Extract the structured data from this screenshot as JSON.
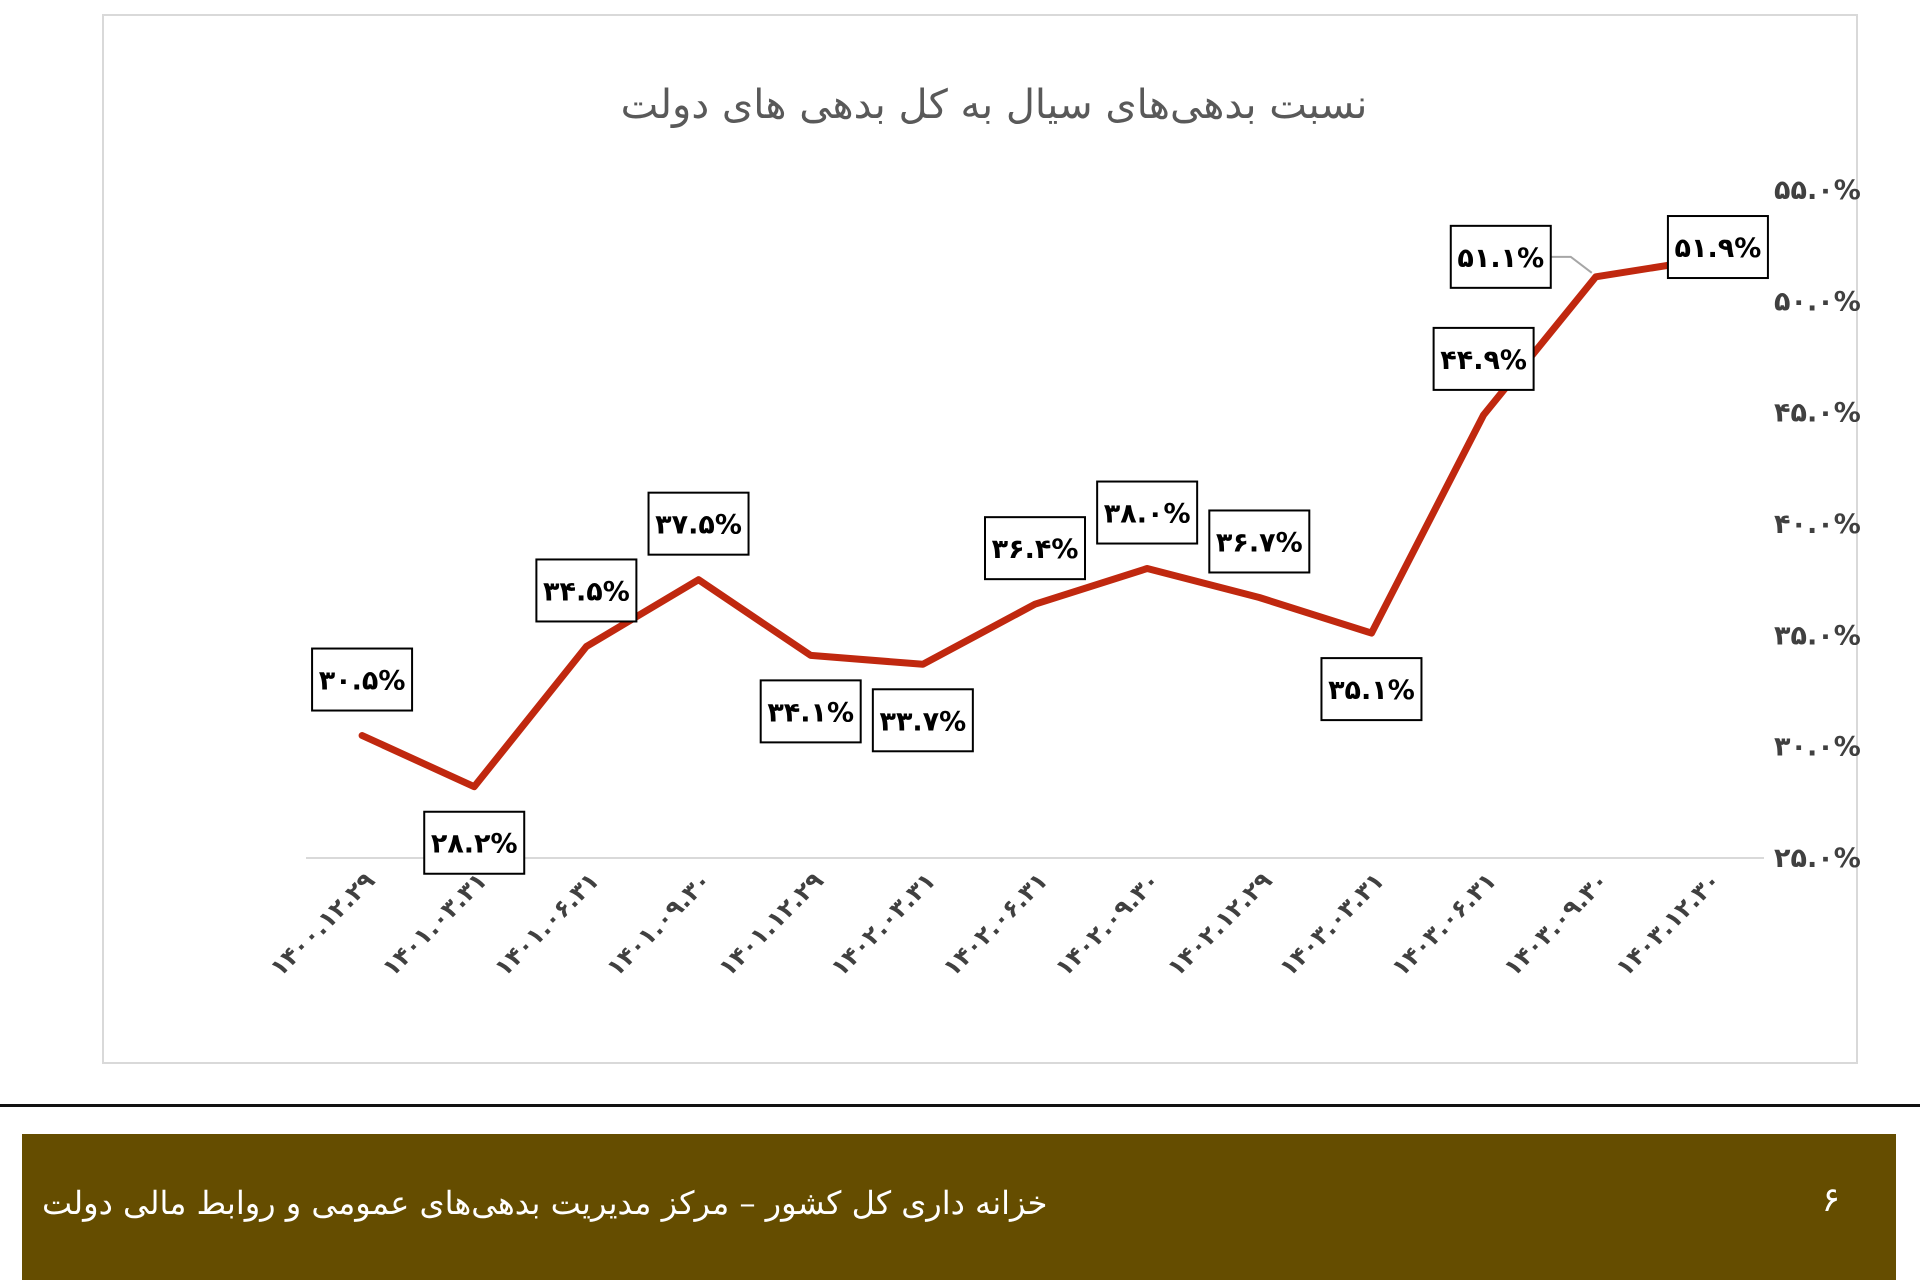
{
  "chart_data": {
    "type": "line",
    "title": "نسبت بدهی‌های سیال به کل بدهی های دولت",
    "categories": [
      "۱۴۰۰.۱۲.۲۹",
      "۱۴۰۱.۰۳.۳۱",
      "۱۴۰۱.۰۶.۳۱",
      "۱۴۰۱.۰۹.۳۰",
      "۱۴۰۱.۱۲.۲۹",
      "۱۴۰۲.۰۳.۳۱",
      "۱۴۰۲.۰۶.۳۱",
      "۱۴۰۲.۰۹.۳۰",
      "۱۴۰۲.۱۲.۲۹",
      "۱۴۰۳.۰۳.۳۱",
      "۱۴۰۳.۰۶.۳۱",
      "۱۴۰۳.۰۹.۳۰",
      "۱۴۰۳.۱۲.۳۰"
    ],
    "values": [
      30.5,
      28.2,
      34.5,
      37.5,
      34.1,
      33.7,
      36.4,
      38.0,
      36.7,
      35.1,
      44.9,
      51.1,
      51.9
    ],
    "data_labels": [
      "۳۰.۵%",
      "۲۸.۲%",
      "۳۴.۵%",
      "۳۷.۵%",
      "۳۴.۱%",
      "۳۳.۷%",
      "۳۶.۴%",
      "۳۸.۰%",
      "۳۶.۷%",
      "۳۵.۱%",
      "۴۴.۹%",
      "۵۱.۱%",
      "۵۱.۹%"
    ],
    "ylim": [
      25,
      55
    ],
    "y_ticks": [
      25,
      30,
      35,
      40,
      45,
      50,
      55
    ],
    "y_tick_labels": [
      "۲۵.۰%",
      "۳۰.۰%",
      "۳۵.۰%",
      "۴۰.۰%",
      "۴۵.۰%",
      "۵۰.۰%",
      "۵۵.۰%"
    ],
    "y_axis_side": "right",
    "grid": false,
    "legend": "none",
    "line_color": "#c0280f"
  },
  "footer": {
    "text": "خزانه داری کل کشور – مرکز مدیریت بدهی‌های عمومی و روابط مالی دولت",
    "page_number": "۶",
    "background": "#654d00"
  }
}
